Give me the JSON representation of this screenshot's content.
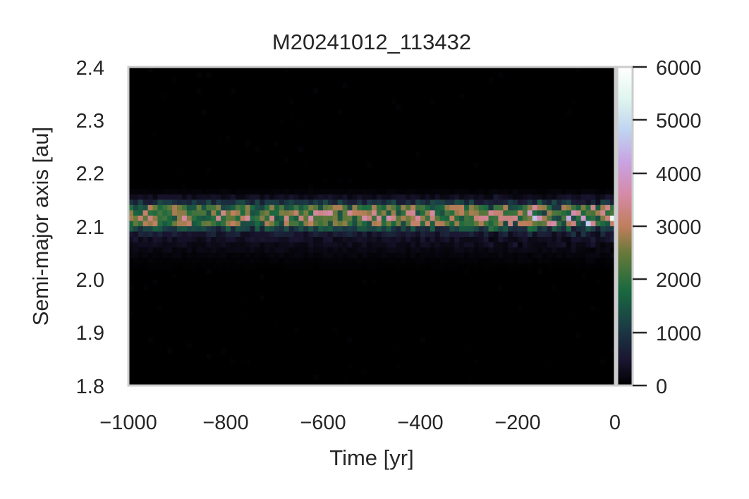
{
  "chart_data": {
    "type": "heatmap",
    "title": "M20241012_113432",
    "xlabel": "Time [yr]",
    "ylabel": "Semi-major axis [au]",
    "xlim": [
      -1000,
      0
    ],
    "ylim": [
      1.8,
      2.4
    ],
    "x_ticks": [
      "−1000",
      "−800",
      "−600",
      "−400",
      "−200",
      "0"
    ],
    "x_tick_values": [
      -1000,
      -800,
      -600,
      -400,
      -200,
      0
    ],
    "y_ticks": [
      "1.8",
      "1.9",
      "2.0",
      "2.1",
      "2.2",
      "2.3",
      "2.4"
    ],
    "y_tick_values": [
      1.8,
      1.9,
      2.0,
      2.1,
      2.2,
      2.3,
      2.4
    ],
    "colorbar": {
      "ticks": [
        "0",
        "1000",
        "2000",
        "3000",
        "4000",
        "5000",
        "6000"
      ],
      "tick_values": [
        0,
        1000,
        2000,
        3000,
        4000,
        5000,
        6000
      ],
      "range": [
        0,
        6000
      ],
      "colormap": "cubehelix"
    },
    "grid": false,
    "bins": {
      "x_count": 100,
      "x_width": 10,
      "y_count": 60,
      "y_width": 0.01
    },
    "band": {
      "rows": [
        {
          "a": 2.165,
          "count": 80
        },
        {
          "a": 2.155,
          "count": 300
        },
        {
          "a": 2.145,
          "count": 900
        },
        {
          "a": 2.135,
          "count": 2100
        },
        {
          "a": 2.125,
          "count": 2500
        },
        {
          "a": 2.115,
          "count": 2550
        },
        {
          "a": 2.105,
          "count": 2150
        },
        {
          "a": 2.095,
          "count": 1100
        },
        {
          "a": 2.085,
          "count": 550
        },
        {
          "a": 2.075,
          "count": 350
        },
        {
          "a": 2.065,
          "count": 250
        },
        {
          "a": 2.055,
          "count": 170
        },
        {
          "a": 2.045,
          "count": 110
        },
        {
          "a": 2.035,
          "count": 60
        },
        {
          "a": 2.025,
          "count": 30
        }
      ],
      "late_peak_counts": [
        {
          "t": -235,
          "a": 2.115,
          "count": 3300
        },
        {
          "t": -175,
          "a": 2.125,
          "count": 3900
        },
        {
          "t": -125,
          "a": 2.105,
          "count": 3600
        },
        {
          "t": -95,
          "a": 2.115,
          "count": 4300
        },
        {
          "t": -55,
          "a": 2.105,
          "count": 4700
        },
        {
          "t": -25,
          "a": 2.125,
          "count": 3400
        },
        {
          "t": -5,
          "a": 2.115,
          "count": 5700
        }
      ]
    }
  }
}
